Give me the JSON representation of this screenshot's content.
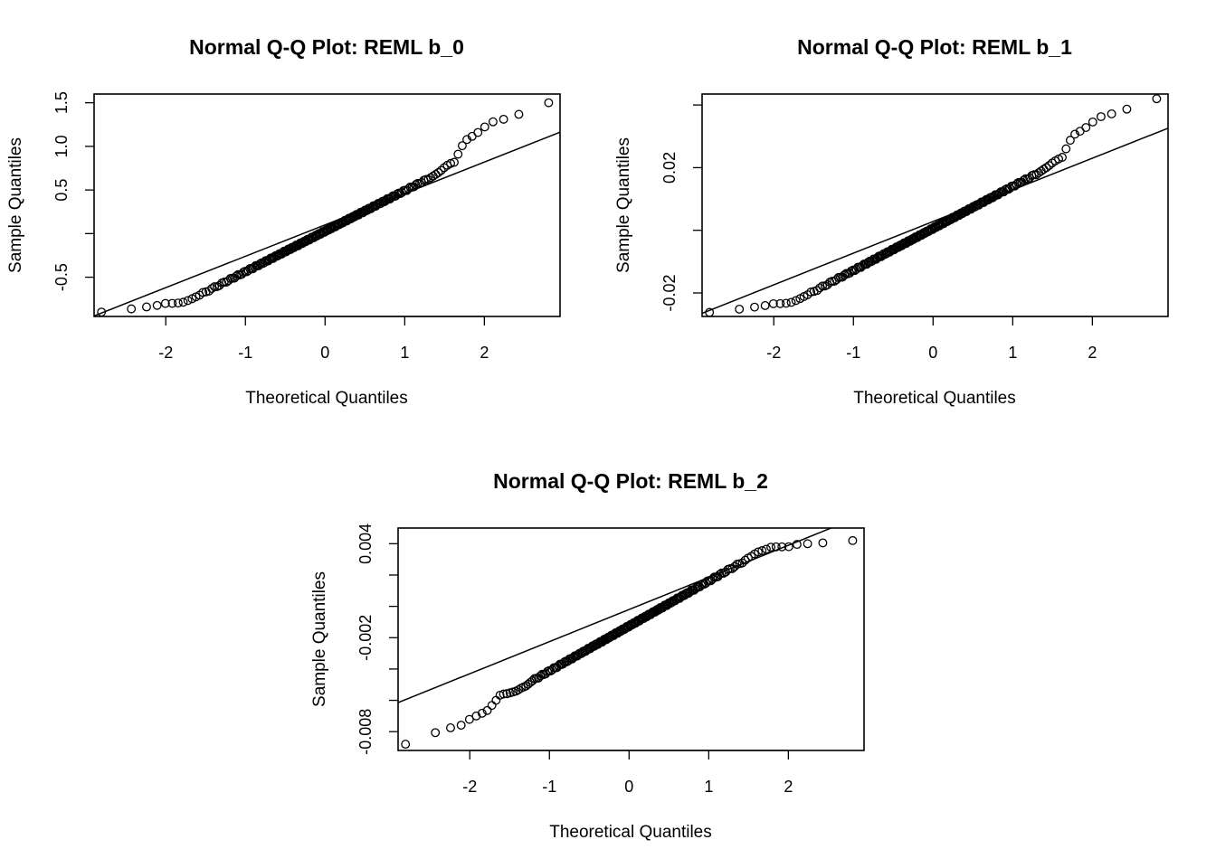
{
  "chart_data": [
    {
      "type": "scatter",
      "title": "Normal Q-Q Plot: REML b_0",
      "xlabel": "Theoretical Quantiles",
      "ylabel": "Sample Quantiles",
      "xlim": [
        -2.9,
        2.95
      ],
      "ylim": [
        -0.95,
        1.6
      ],
      "xticks": [
        -2,
        -1,
        0,
        1,
        2
      ],
      "xtick_labels": [
        "-2",
        "-1",
        "0",
        "1",
        "2"
      ],
      "yticks": [
        -0.5,
        0,
        0.5,
        1.0,
        1.5
      ],
      "ytick_labels": [
        "-0.5",
        "",
        "0.5",
        "1.0",
        "1.5"
      ],
      "ref_line": {
        "intercept": 0.1,
        "slope": 0.36
      },
      "tails": {
        "lower": [
          [
            -2.72,
            -0.9
          ],
          [
            -2.33,
            -0.85
          ],
          [
            -2.14,
            -0.83
          ],
          [
            -2.0,
            -0.8
          ],
          [
            -1.88,
            -0.8
          ],
          [
            -1.79,
            -0.79
          ],
          [
            -1.7,
            -0.76
          ],
          [
            -1.61,
            -0.72
          ]
        ],
        "upper": [
          [
            1.34,
            0.65
          ],
          [
            1.39,
            0.68
          ],
          [
            1.44,
            0.71
          ],
          [
            1.5,
            0.76
          ],
          [
            1.56,
            0.8
          ],
          [
            1.63,
            0.82
          ],
          [
            1.7,
            0.98
          ],
          [
            1.79,
            1.09
          ],
          [
            1.88,
            1.13
          ],
          [
            2.0,
            1.22
          ],
          [
            2.14,
            1.3
          ],
          [
            2.33,
            1.32
          ],
          [
            2.72,
            1.5
          ]
        ]
      }
    },
    {
      "type": "scatter",
      "title": "Normal Q-Q Plot: REML b_1",
      "xlabel": "Theoretical Quantiles",
      "ylabel": "Sample Quantiles",
      "xlim": [
        -2.9,
        2.95
      ],
      "ylim": [
        -0.0275,
        0.0435
      ],
      "xticks": [
        -2,
        -1,
        0,
        1,
        2
      ],
      "xtick_labels": [
        "-2",
        "-1",
        "0",
        "1",
        "2"
      ],
      "yticks": [
        -0.02,
        0,
        0.02,
        0.04
      ],
      "ytick_labels": [
        "-0.02",
        "",
        "0.02",
        ""
      ],
      "ref_line": {
        "intercept": 0.0028,
        "slope": 0.0101
      },
      "tails": {
        "lower": [
          [
            -2.72,
            -0.0262
          ],
          [
            -2.33,
            -0.0248
          ],
          [
            -2.14,
            -0.0242
          ],
          [
            -2.0,
            -0.0234
          ],
          [
            -1.88,
            -0.0234
          ],
          [
            -1.79,
            -0.0231
          ],
          [
            -1.7,
            -0.0222
          ],
          [
            -1.61,
            -0.021
          ]
        ],
        "upper": [
          [
            1.34,
            0.0186
          ],
          [
            1.39,
            0.0195
          ],
          [
            1.44,
            0.0203
          ],
          [
            1.5,
            0.0216
          ],
          [
            1.56,
            0.0226
          ],
          [
            1.63,
            0.0234
          ],
          [
            1.7,
            0.028
          ],
          [
            1.79,
            0.031
          ],
          [
            1.88,
            0.032
          ],
          [
            2.0,
            0.0345
          ],
          [
            2.14,
            0.0368
          ],
          [
            2.33,
            0.0375
          ],
          [
            2.72,
            0.042
          ]
        ]
      }
    },
    {
      "type": "scatter",
      "title": "Normal Q-Q Plot: REML b_2",
      "xlabel": "Theoretical Quantiles",
      "ylabel": "Sample Quantiles",
      "xlim": [
        -2.9,
        2.95
      ],
      "ylim": [
        -0.0092,
        0.005
      ],
      "xticks": [
        -2,
        -1,
        0,
        1,
        2
      ],
      "xtick_labels": [
        "-2",
        "-1",
        "0",
        "1",
        "2"
      ],
      "yticks": [
        -0.008,
        -0.006,
        -0.004,
        -0.002,
        0.0,
        0.002,
        0.004
      ],
      "ytick_labels": [
        "-0.008",
        "",
        "",
        "-0.002",
        "",
        "",
        "0.004"
      ],
      "ref_line": {
        "intercept": -0.0002,
        "slope": 0.00205
      },
      "tails": {
        "lower": [
          [
            -2.72,
            -0.0088
          ],
          [
            -2.33,
            -0.0078
          ],
          [
            -2.14,
            -0.0077
          ],
          [
            -2.0,
            -0.0072
          ],
          [
            -1.88,
            -0.0069
          ],
          [
            -1.79,
            -0.0067
          ],
          [
            -1.7,
            -0.0062
          ],
          [
            -1.61,
            -0.0056
          ],
          [
            -1.55,
            -0.0056
          ],
          [
            -1.48,
            -0.0055
          ],
          [
            -1.41,
            -0.0054
          ],
          [
            -1.35,
            -0.0052
          ],
          [
            -1.3,
            -0.0051
          ],
          [
            -1.25,
            -0.0049
          ],
          [
            -1.2,
            -0.0047
          ]
        ],
        "upper": [
          [
            1.5,
            0.00305
          ],
          [
            1.56,
            0.0033
          ],
          [
            1.63,
            0.0035
          ],
          [
            1.7,
            0.0036
          ],
          [
            1.79,
            0.0038
          ],
          [
            1.88,
            0.0038
          ],
          [
            2.0,
            0.0038
          ],
          [
            2.14,
            0.004
          ],
          [
            2.33,
            0.004
          ],
          [
            2.72,
            0.0042
          ]
        ]
      }
    }
  ]
}
